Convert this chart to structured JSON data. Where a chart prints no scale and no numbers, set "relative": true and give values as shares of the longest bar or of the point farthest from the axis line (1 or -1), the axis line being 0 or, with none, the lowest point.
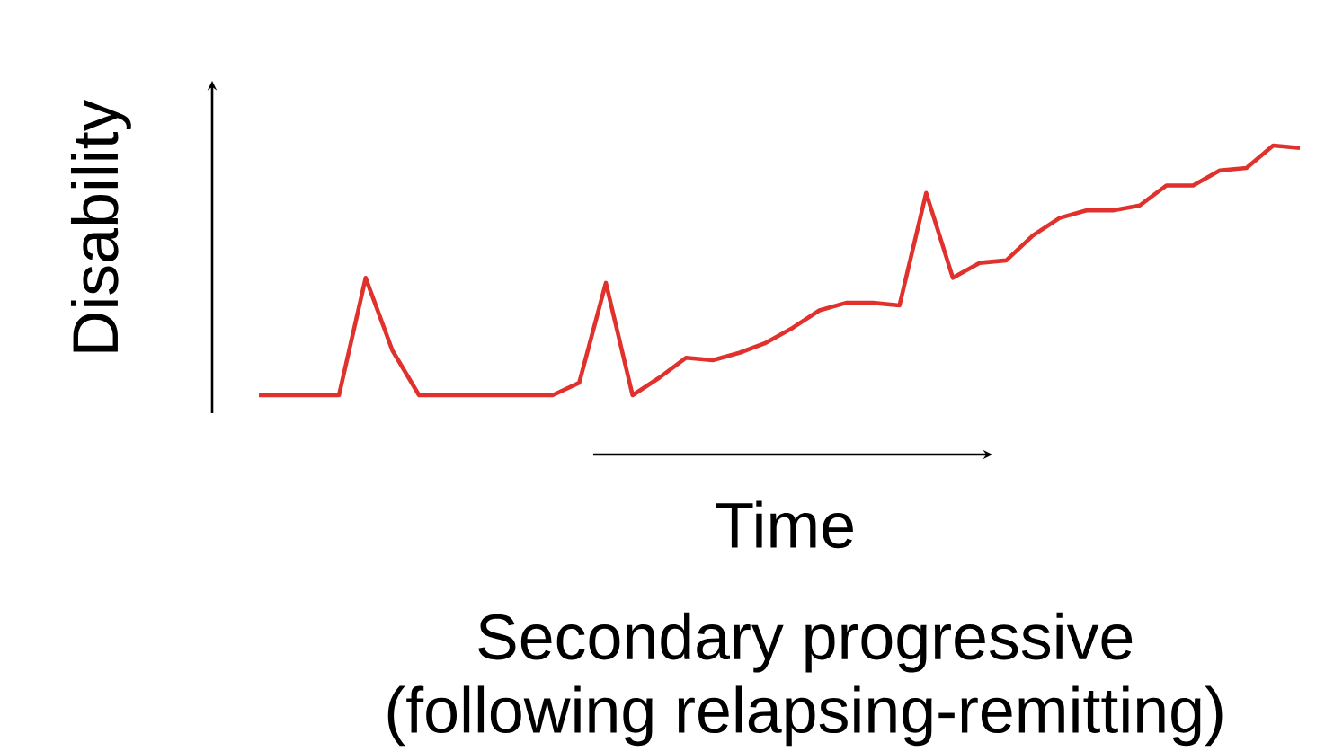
{
  "chart_data": {
    "type": "line",
    "relative": true,
    "xlabel": "Time",
    "ylabel": "Disability",
    "color": "#e0312c",
    "annotations": [
      "Secondary progressive (following relapsing-remitting)"
    ],
    "categories": [
      null,
      null,
      null,
      null,
      null,
      null,
      null,
      null,
      null,
      null,
      null,
      null,
      null,
      null,
      null,
      null,
      null,
      null,
      null,
      null,
      null,
      null,
      null,
      null,
      null,
      null,
      null,
      null,
      null,
      null,
      null,
      null,
      null,
      null,
      null,
      null,
      null,
      null,
      null,
      null
    ],
    "values": [
      0,
      0,
      0,
      0,
      0.47,
      0.18,
      0,
      0,
      0,
      0,
      0,
      0,
      0.05,
      0.45,
      0,
      0.07,
      0.15,
      0.14,
      0.17,
      0.21,
      0.27,
      0.34,
      0.37,
      0.37,
      0.36,
      0.81,
      0.47,
      0.53,
      0.54,
      0.64,
      0.71,
      0.74,
      0.74,
      0.76,
      0.84,
      0.84,
      0.9,
      0.91,
      1,
      0.99
    ]
  }
}
